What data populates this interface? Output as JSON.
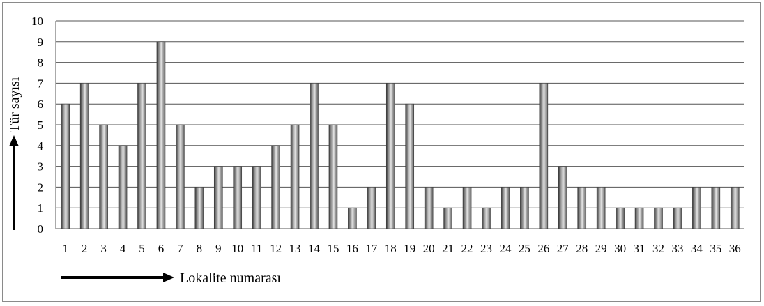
{
  "chart_data": {
    "type": "bar",
    "xlabel": "Lokalite numarası",
    "ylabel": "Tür sayısı",
    "ylim": [
      0,
      10
    ],
    "yticks": [
      "0",
      "1",
      "2",
      "3",
      "4",
      "5",
      "6",
      "7",
      "8",
      "9",
      "10"
    ],
    "grid": true,
    "categories": [
      "1",
      "2",
      "3",
      "4",
      "5",
      "6",
      "7",
      "8",
      "9",
      "10",
      "11",
      "12",
      "13",
      "14",
      "15",
      "16",
      "17",
      "18",
      "19",
      "20",
      "21",
      "22",
      "23",
      "24",
      "25",
      "26",
      "27",
      "28",
      "29",
      "30",
      "31",
      "32",
      "33",
      "34",
      "35",
      "36"
    ],
    "values": [
      6,
      7,
      5,
      4,
      7,
      9,
      5,
      2,
      3,
      3,
      3,
      4,
      5,
      7,
      5,
      1,
      2,
      7,
      6,
      2,
      1,
      2,
      1,
      2,
      2,
      7,
      3,
      2,
      2,
      1,
      1,
      1,
      1,
      2,
      2,
      2
    ],
    "colors": {
      "bar_dark": "#4a4a4a",
      "bar_light": "#d8d8d8",
      "grid": "#555555",
      "frame": "#8a8a8a"
    }
  }
}
